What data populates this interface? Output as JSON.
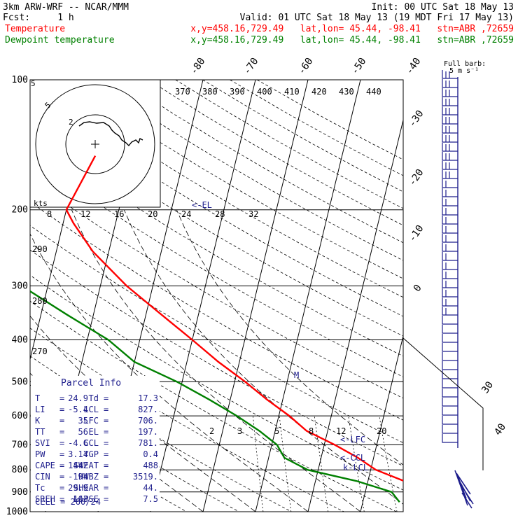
{
  "header": {
    "model": "3km ARW-WRF -- NCAR/MMM",
    "init": "Init: 00 UTC Sat 18 May 13",
    "fcst": "Fcst:     1 h",
    "valid": "Valid: 01 UTC Sat 18 May 13 (19 MDT Fri 17 May 13)",
    "temp_line": {
      "label": "Temperature",
      "info": "x,y=458.16,729.49   lat,lon= 45.44, -98.41   stn=ABR ,72659"
    },
    "dew_line": {
      "label": "Dewpoint temperature",
      "info": "x,y=458.16,729.49   lat,lon= 45.44, -98.41   stn=ABR ,72659"
    }
  },
  "colors": {
    "temperature": "#ff0000",
    "dewpoint": "#008000",
    "wind": "#1e1e8c",
    "header_temp": "#ff0000",
    "header_dew": "#008000",
    "label_blue": "#1e1e8c"
  },
  "chart_data": {
    "type": "line",
    "title": "3km ARW-WRF -- NCAR/MMM",
    "pressure_ticks": [
      "100",
      "200",
      "300",
      "400",
      "500",
      "600",
      "700",
      "800",
      "900",
      "1000"
    ],
    "isotherm_labels": [
      "-80",
      "-70",
      "-60",
      "-50",
      "-40",
      "-30",
      "-20",
      "-10",
      "0",
      "30",
      "40"
    ],
    "theta_labels": [
      "290",
      "280",
      "270"
    ],
    "theta_e_labels": [
      "370",
      "380",
      "390",
      "400",
      "410",
      "420",
      "430",
      "440"
    ],
    "mixing_ratio_labels": [
      "2",
      "3",
      "5",
      "8",
      "12",
      "20"
    ],
    "series": [
      {
        "name": "Temperature",
        "pressure": [
          150,
          200,
          215,
          250,
          300,
          350,
          400,
          450,
          500,
          550,
          600,
          650,
          700,
          750,
          800,
          850,
          900,
          950
        ],
        "temperature_c": [
          -57,
          -60,
          -58,
          -53,
          -45,
          -37,
          -30,
          -24,
          -18,
          -13,
          -8,
          -4,
          2,
          7,
          11,
          17,
          21,
          25
        ]
      },
      {
        "name": "Dewpoint temperature",
        "pressure": [
          150,
          200,
          250,
          300,
          350,
          400,
          450,
          500,
          550,
          600,
          650,
          700,
          750,
          800,
          850,
          900,
          950
        ],
        "temperature_c": [
          -70,
          -78,
          -72,
          -65,
          -55,
          -46,
          -40,
          -31,
          -24,
          -18,
          -13,
          -9,
          -7,
          -2,
          8,
          15,
          17
        ]
      }
    ],
    "markers": [
      {
        "label": "<-EL",
        "pressure": 197
      },
      {
        "label": "<-LFC",
        "pressure": 706
      },
      {
        "label": "<-CCL",
        "pressure": 781
      },
      {
        "label": "k-LCL",
        "pressure": 827
      },
      {
        "label": "M",
        "pressure": 500
      }
    ],
    "hodograph": {
      "ring_labels": [
        "2",
        "5"
      ],
      "speed_unit": "kts",
      "speed_ticks": [
        "8",
        "12",
        "16",
        "20",
        "24",
        "28",
        "32"
      ]
    },
    "wind_legend": {
      "title": "Full barb:",
      "value": "5 m s⁻¹"
    }
  },
  "parcel_info": {
    "title": "Parcel Info",
    "rows": [
      {
        "k1": "T",
        "v1": "24.9",
        "k2": "Td",
        "v2": "17.3"
      },
      {
        "k1": "LI",
        "v1": "-5.4",
        "k2": "LCL",
        "v2": "827."
      },
      {
        "k1": "K",
        "v1": "35",
        "k2": "LFC",
        "v2": "706."
      },
      {
        "k1": "TT",
        "v1": "56",
        "k2": "EL",
        "v2": "197."
      },
      {
        "k1": "SVI",
        "v1": "-4.6",
        "k2": "CCL",
        "v2": "781."
      },
      {
        "k1": "PW",
        "v1": "3.14",
        "k2": "YGP",
        "v2": "0.4"
      },
      {
        "k1": "CAPE",
        "v1": "1442",
        "k2": "SWEAT",
        "v2": "488"
      },
      {
        "k1": "CIN",
        "v1": "-194",
        "k2": "HWBZ",
        "v2": "3519."
      },
      {
        "k1": "Tc",
        "v1": "29.9",
        "k2": "SHEAR",
        "v2": "44."
      },
      {
        "k1": "SREH",
        "v1": "163",
        "k2": "LAPSE",
        "v2": "7.5"
      }
    ],
    "cell": "CELL = 260/24"
  }
}
